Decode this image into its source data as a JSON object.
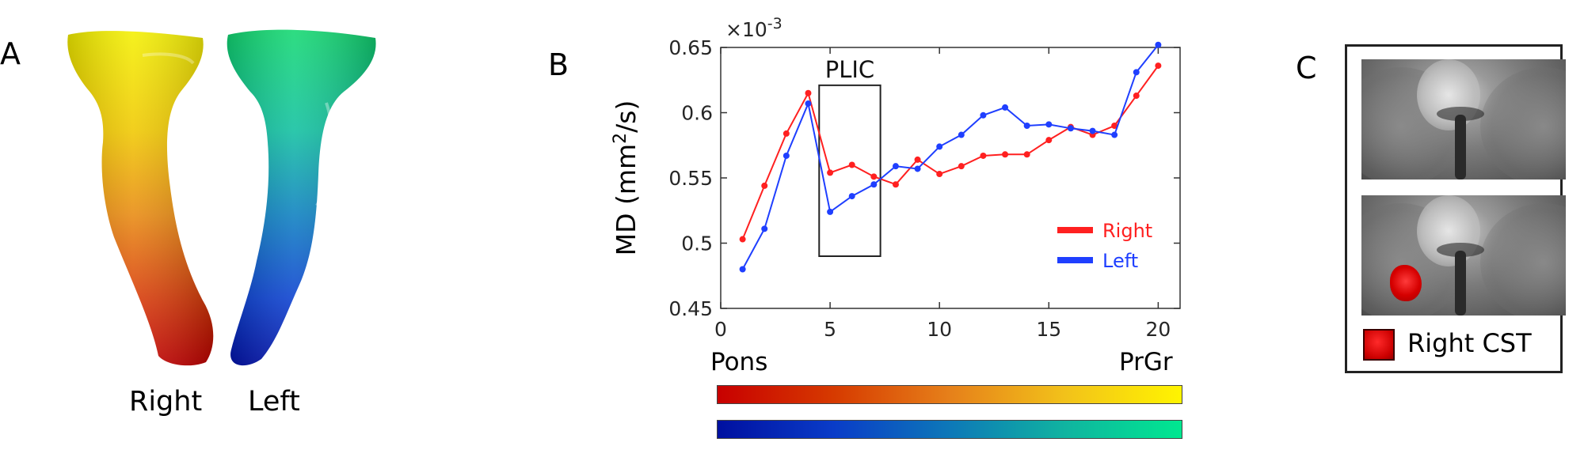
{
  "panels": {
    "a": {
      "letter": "A",
      "right_label": "Right",
      "left_label": "Left"
    },
    "b": {
      "letter": "B",
      "pons_label": "Pons",
      "prgr_label": "PrGr"
    },
    "c": {
      "letter": "C",
      "legend_label": "Right CST"
    }
  },
  "chart_data": {
    "type": "line",
    "ylabel": "MD (mm²/s)",
    "ylabel_parts": {
      "base": "MD (mm",
      "sup": "2",
      "tail": "/s)"
    },
    "y_multiplier_base": "×10",
    "y_multiplier_exp": "-3",
    "annotation": "PLIC",
    "annotation_box": {
      "x_from": 4.5,
      "x_to": 7.3,
      "y_from": 0.49,
      "y_to": 0.621
    },
    "xlim": [
      0,
      21
    ],
    "ylim": [
      0.45,
      0.65
    ],
    "xticks": [
      "0",
      "5",
      "10",
      "15",
      "20"
    ],
    "xtick_values": [
      0,
      5,
      10,
      15,
      20
    ],
    "yticks": [
      "0.45",
      "0.5",
      "0.55",
      "0.6",
      "0.65"
    ],
    "ytick_values": [
      0.45,
      0.5,
      0.55,
      0.6,
      0.65
    ],
    "legend_position": "right",
    "x": [
      1,
      2,
      3,
      4,
      5,
      6,
      7,
      8,
      9,
      10,
      11,
      12,
      13,
      14,
      15,
      16,
      17,
      18,
      19,
      20
    ],
    "series": [
      {
        "name": "Right",
        "color": "#ff2020",
        "values": [
          0.503,
          0.544,
          0.584,
          0.615,
          0.554,
          0.56,
          0.551,
          0.545,
          0.564,
          0.553,
          0.559,
          0.567,
          0.568,
          0.568,
          0.579,
          0.589,
          0.583,
          0.59,
          0.613,
          0.636
        ]
      },
      {
        "name": "Left",
        "color": "#1f3fff",
        "values": [
          0.48,
          0.511,
          0.567,
          0.607,
          0.524,
          0.536,
          0.545,
          0.559,
          0.557,
          0.574,
          0.583,
          0.598,
          0.604,
          0.59,
          0.591,
          0.588,
          0.586,
          0.583,
          0.631,
          0.652
        ]
      }
    ]
  },
  "colors": {
    "right_gradient": [
      "#c80000",
      "#e6801a",
      "#fff400"
    ],
    "left_gradient": [
      "#0010a0",
      "#0d78b8",
      "#00e890"
    ],
    "roi": "#d50000"
  }
}
